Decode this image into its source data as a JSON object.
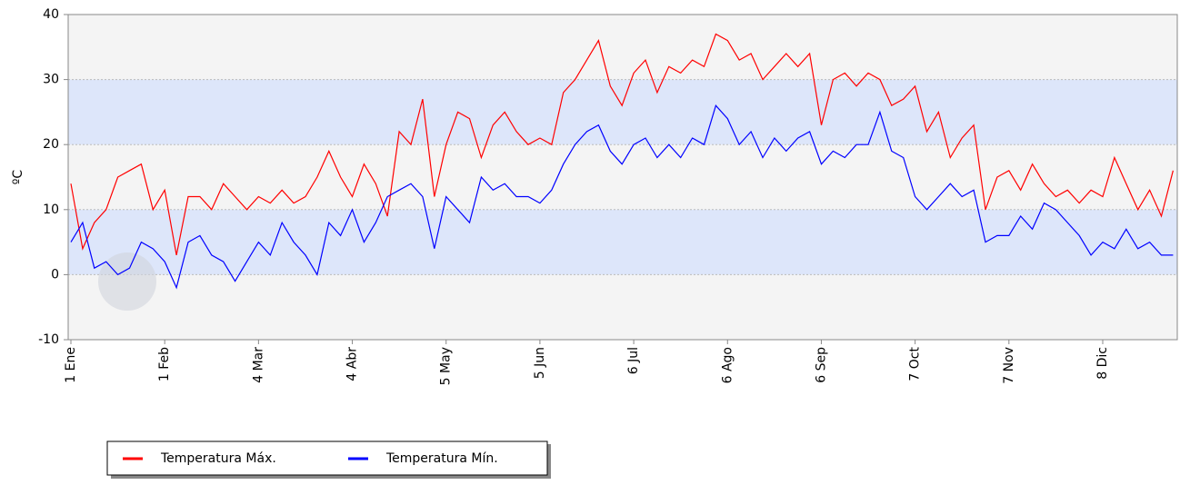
{
  "chart_data": {
    "type": "line",
    "y_label": "ºC",
    "categories": [
      "1 Ene",
      null,
      null,
      null,
      null,
      null,
      null,
      null,
      "1 Feb",
      null,
      null,
      null,
      null,
      null,
      null,
      null,
      "4 Mar",
      null,
      null,
      null,
      null,
      null,
      null,
      null,
      "4 Abr",
      null,
      null,
      null,
      null,
      null,
      null,
      null,
      "5 May",
      null,
      null,
      null,
      null,
      null,
      null,
      null,
      "5 Jun",
      null,
      null,
      null,
      null,
      null,
      null,
      null,
      "6 Jul",
      null,
      null,
      null,
      null,
      null,
      null,
      null,
      "6 Ago",
      null,
      null,
      null,
      null,
      null,
      null,
      null,
      "6 Sep",
      null,
      null,
      null,
      null,
      null,
      null,
      null,
      "7 Oct",
      null,
      null,
      null,
      null,
      null,
      null,
      null,
      "7 Nov",
      null,
      null,
      null,
      null,
      null,
      null,
      null,
      "8 Dic",
      null,
      null,
      null,
      null,
      null,
      null
    ],
    "series": [
      {
        "name": "Temperatura Máx.",
        "color": "#ff0000",
        "values": [
          14,
          4,
          8,
          10,
          15,
          16,
          17,
          10,
          13,
          3,
          12,
          12,
          10,
          14,
          12,
          10,
          12,
          11,
          13,
          11,
          12,
          15,
          19,
          15,
          12,
          17,
          14,
          9,
          22,
          20,
          27,
          12,
          20,
          25,
          24,
          18,
          23,
          25,
          22,
          20,
          21,
          20,
          28,
          30,
          33,
          36,
          29,
          26,
          31,
          33,
          28,
          32,
          31,
          33,
          32,
          37,
          36,
          33,
          34,
          30,
          32,
          34,
          32,
          34,
          23,
          30,
          31,
          29,
          31,
          30,
          26,
          27,
          29,
          22,
          25,
          18,
          21,
          23,
          10,
          15,
          16,
          13,
          17,
          14,
          12,
          13,
          11,
          13,
          12,
          18,
          14,
          10,
          13,
          9,
          16
        ]
      },
      {
        "name": "Temperatura Mín.",
        "color": "#0000ff",
        "values": [
          5,
          8,
          1,
          2,
          0,
          1,
          5,
          4,
          2,
          -2,
          5,
          6,
          3,
          2,
          -1,
          2,
          5,
          3,
          8,
          5,
          3,
          0,
          8,
          6,
          10,
          5,
          8,
          12,
          13,
          14,
          12,
          4,
          12,
          10,
          8,
          15,
          13,
          14,
          12,
          12,
          11,
          13,
          17,
          20,
          22,
          23,
          19,
          17,
          20,
          21,
          18,
          20,
          18,
          21,
          20,
          26,
          24,
          20,
          22,
          18,
          21,
          19,
          21,
          22,
          17,
          19,
          18,
          20,
          20,
          25,
          19,
          18,
          12,
          10,
          12,
          14,
          12,
          13,
          5,
          6,
          6,
          9,
          7,
          11,
          10,
          8,
          6,
          3,
          5,
          4,
          7,
          4,
          5,
          3,
          3
        ]
      }
    ],
    "ylim": [
      -10,
      40
    ],
    "yticks": [
      -10,
      0,
      10,
      20,
      30,
      40
    ],
    "bands": [
      {
        "from": 0,
        "to": 10
      },
      {
        "from": 20,
        "to": 30
      }
    ],
    "band_color": "#dde6fa",
    "grid": true
  }
}
